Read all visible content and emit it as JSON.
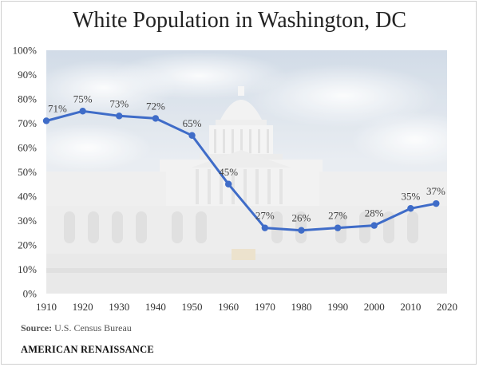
{
  "chart_data": {
    "type": "line",
    "title": "White Population in Washington, DC",
    "xlabel": "",
    "ylabel": "",
    "x": [
      1910,
      1920,
      1930,
      1940,
      1950,
      1960,
      1970,
      1980,
      1990,
      2000,
      2010,
      2017
    ],
    "series": [
      {
        "values": [
          71,
          75,
          73,
          72,
          65,
          45,
          27,
          26,
          27,
          28,
          35,
          37
        ],
        "labels": [
          "71%",
          "75%",
          "73%",
          "72%",
          "65%",
          "45%",
          "27%",
          "26%",
          "27%",
          "28%",
          "35%",
          "37%"
        ]
      }
    ],
    "xlim": [
      1910,
      2020
    ],
    "ylim": [
      0,
      100
    ],
    "x_ticks": [
      "1910",
      "1920",
      "1930",
      "1940",
      "1950",
      "1960",
      "1970",
      "1980",
      "1990",
      "2000",
      "2010",
      "2020"
    ],
    "y_ticks": [
      "0%",
      "10%",
      "20%",
      "30%",
      "40%",
      "50%",
      "60%",
      "70%",
      "80%",
      "90%",
      "100%"
    ],
    "grid": false,
    "legend": "none",
    "background": "photo of the U.S. Capitol building under a cloudy sky",
    "colors": {
      "line": "#3f6cc8",
      "marker": "#3f6cc8",
      "text": "#444444"
    }
  },
  "source": {
    "label": "Source:",
    "text": "U.S. Census Bureau"
  },
  "brand": "AMERICAN RENAISSANCE"
}
